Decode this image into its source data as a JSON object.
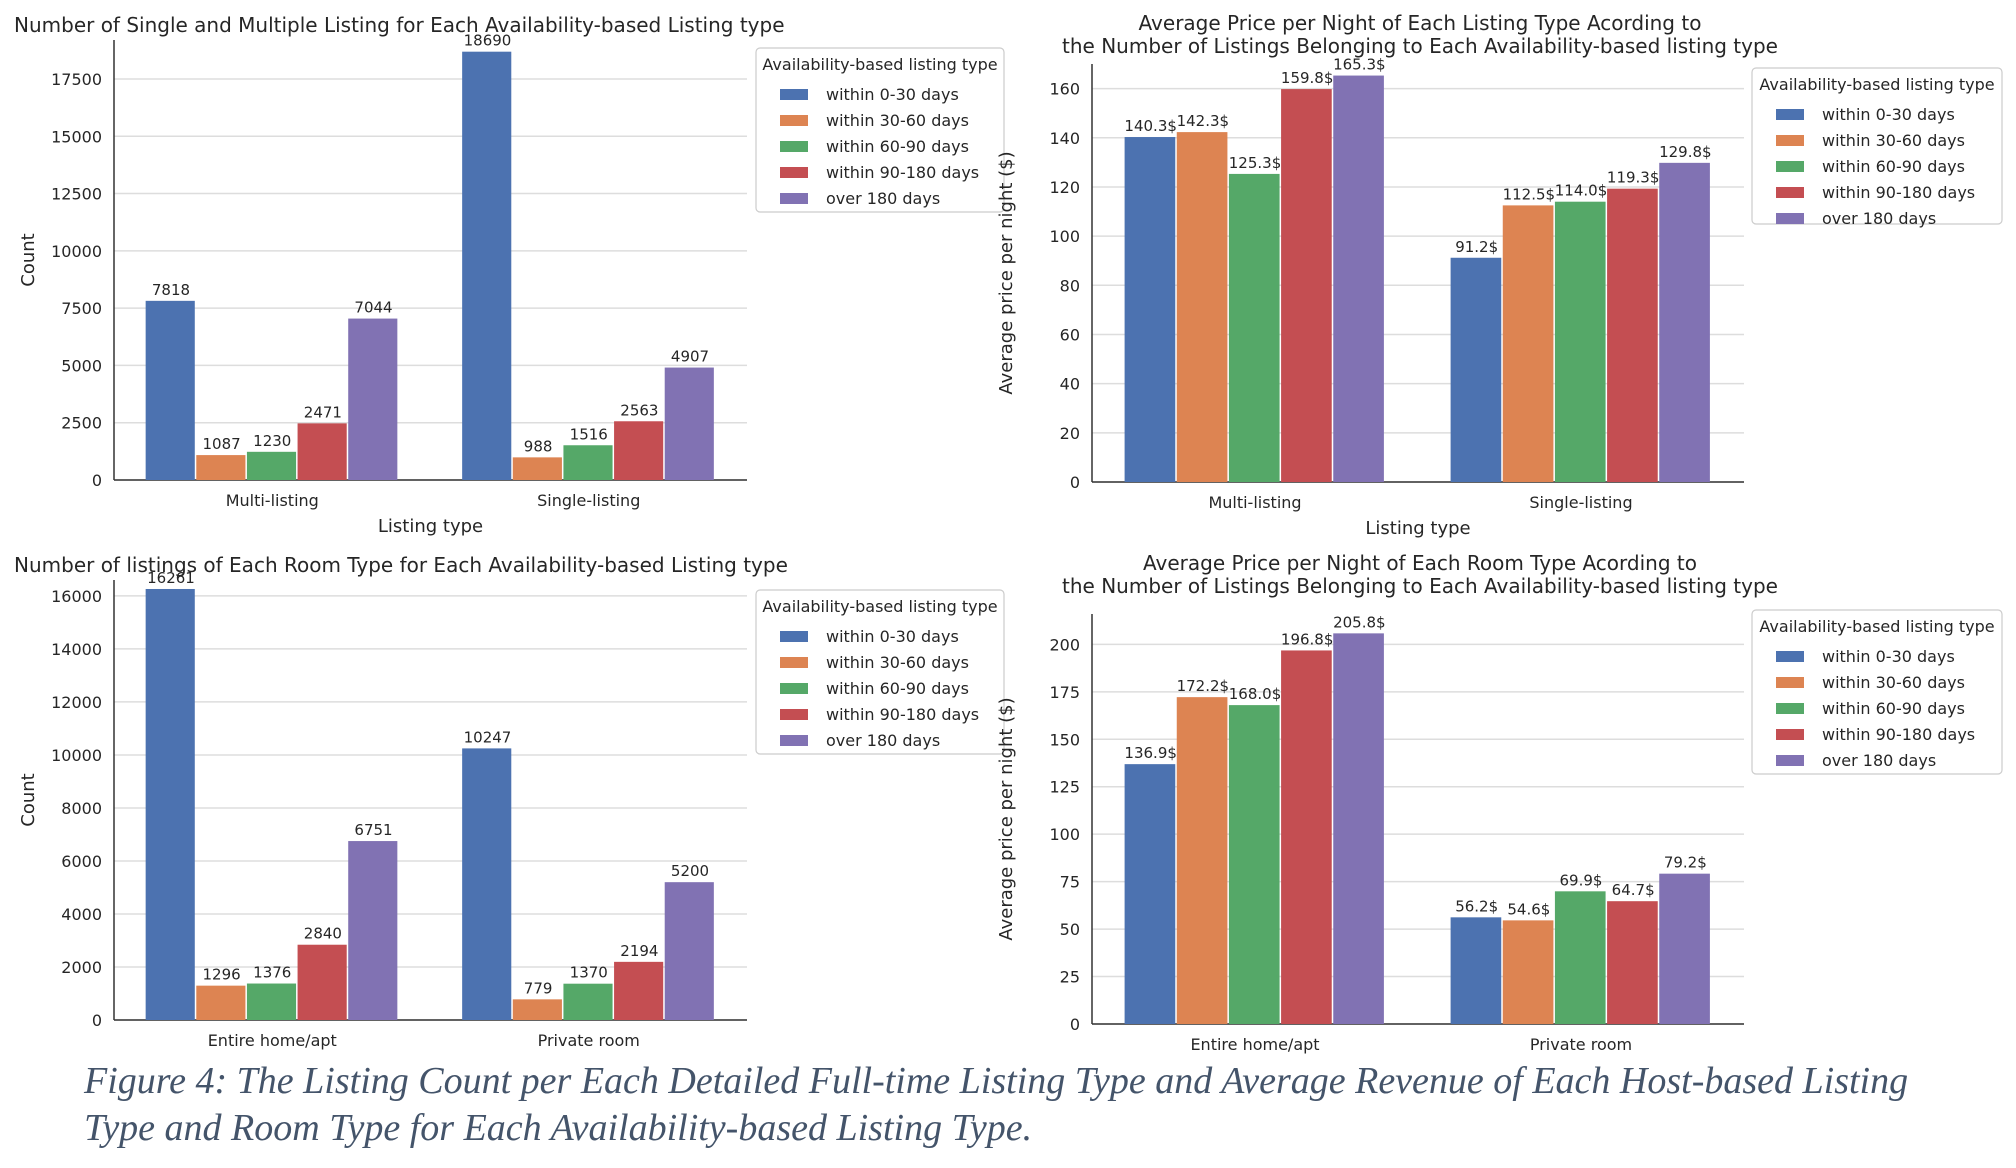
{
  "caption": "Figure 4: The Listing Count per Each Detailed Full-time Listing Type and Average Revenue of Each Host-based Listing Type and Room Type for Each Availability-based Listing Type.",
  "colors": [
    "#4c72b0",
    "#dd8452",
    "#55a868",
    "#c44e52",
    "#8172b3"
  ],
  "legend_title": "Availability-based listing type",
  "legend_entries": [
    "within 0-30 days",
    "within 30-60 days",
    "within 60-90 days",
    "within 90-180 days",
    "over 180 days"
  ],
  "chart_data": [
    {
      "type": "bar",
      "title": [
        "Number of Single and Multiple Listing for Each Availability-based Listing type"
      ],
      "title_align": "left",
      "xlabel": "Listing type",
      "ylabel": "Count",
      "categories": [
        "Multi-listing",
        "Single-listing"
      ],
      "ylim": [
        0,
        19200
      ],
      "yticks": [
        0,
        2500,
        5000,
        7500,
        10000,
        12500,
        15000,
        17500
      ],
      "grid": true,
      "legend_placement": "upper right",
      "label_suffix": "",
      "series": [
        {
          "name": "within 0-30 days",
          "values": [
            7818,
            18690
          ]
        },
        {
          "name": "within 30-60 days",
          "values": [
            1087,
            988
          ]
        },
        {
          "name": "within 60-90 days",
          "values": [
            1230,
            1516
          ]
        },
        {
          "name": "within 90-180 days",
          "values": [
            2471,
            2563
          ]
        },
        {
          "name": "over 180 days",
          "values": [
            7044,
            4907
          ]
        }
      ]
    },
    {
      "type": "bar",
      "title": [
        "Average Price per Night of Each Listing Type Acording to",
        "the Number of Listings Belonging to Each Availability-based listing type"
      ],
      "title_align": "center",
      "xlabel": "Listing type",
      "ylabel": "Average price per night ($)",
      "categories": [
        "Multi-listing",
        "Single-listing"
      ],
      "ylim": [
        0,
        170
      ],
      "yticks": [
        0,
        20,
        40,
        60,
        80,
        100,
        120,
        140,
        160
      ],
      "grid": true,
      "legend_placement": "upper right",
      "label_suffix": "$",
      "series": [
        {
          "name": "within 0-30 days",
          "values": [
            140.3,
            91.2
          ]
        },
        {
          "name": "within 30-60 days",
          "values": [
            142.3,
            112.5
          ]
        },
        {
          "name": "within 60-90 days",
          "values": [
            125.3,
            114.0
          ]
        },
        {
          "name": "within 90-180 days",
          "values": [
            159.8,
            119.3
          ]
        },
        {
          "name": "over 180 days",
          "values": [
            165.3,
            129.8
          ]
        }
      ]
    },
    {
      "type": "bar",
      "title": [
        "Number of listings of Each Room Type for Each Availability-based Listing type"
      ],
      "title_align": "left",
      "xlabel": "",
      "ylabel": "Count",
      "categories": [
        "Entire home/apt",
        "Private room"
      ],
      "ylim": [
        0,
        16600
      ],
      "yticks": [
        0,
        2000,
        4000,
        6000,
        8000,
        10000,
        12000,
        14000,
        16000
      ],
      "grid": true,
      "legend_placement": "upper right",
      "label_suffix": "",
      "series": [
        {
          "name": "within 0-30 days",
          "values": [
            16261,
            10247
          ]
        },
        {
          "name": "within 30-60 days",
          "values": [
            1296,
            779
          ]
        },
        {
          "name": "within 60-90 days",
          "values": [
            1376,
            1370
          ]
        },
        {
          "name": "within 90-180 days",
          "values": [
            2840,
            2194
          ]
        },
        {
          "name": "over 180 days",
          "values": [
            6751,
            5200
          ]
        }
      ]
    },
    {
      "type": "bar",
      "title": [
        "Average Price per Night of Each Room Type Acording to",
        "the Number of Listings Belonging to Each Availability-based listing type"
      ],
      "title_align": "center",
      "xlabel": "",
      "ylabel": "Average price per night ($)",
      "categories": [
        "Entire home/apt",
        "Private room"
      ],
      "ylim": [
        0,
        216
      ],
      "yticks": [
        0,
        25,
        50,
        75,
        100,
        125,
        150,
        175,
        200
      ],
      "grid": true,
      "legend_placement": "upper right",
      "label_suffix": "$",
      "series": [
        {
          "name": "within 0-30 days",
          "values": [
            136.9,
            56.2
          ]
        },
        {
          "name": "within 30-60 days",
          "values": [
            172.2,
            54.6
          ]
        },
        {
          "name": "within 60-90 days",
          "values": [
            168.0,
            69.9
          ]
        },
        {
          "name": "within 90-180 days",
          "values": [
            196.8,
            64.7
          ]
        },
        {
          "name": "over 180 days",
          "values": [
            205.8,
            79.2
          ]
        }
      ]
    }
  ]
}
